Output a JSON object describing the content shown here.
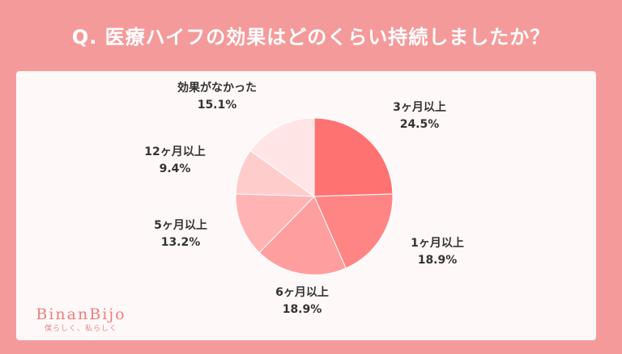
{
  "title": "Q. 医療ハイフの効果はどのくらい持続しましたか？",
  "logo": {
    "name": "BinanBijo",
    "tagline": "僕らしく、私らしく"
  },
  "chart_data": {
    "type": "pie",
    "title": "Q. 医療ハイフの効果はどのくらい持続しましたか？",
    "unit": "%",
    "slices": [
      {
        "label": "3ヶ月以上",
        "value": 24.5,
        "value_label": "24.5%",
        "color": "#ff7272"
      },
      {
        "label": "1ヶ月以上",
        "value": 18.9,
        "value_label": "18.9%",
        "color": "#ff8585"
      },
      {
        "label": "6ヶ月以上",
        "value": 18.9,
        "value_label": "18.9%",
        "color": "#ff9e9e"
      },
      {
        "label": "5ヶ月以上",
        "value": 13.2,
        "value_label": "13.2%",
        "color": "#ffb3b3"
      },
      {
        "label": "12ヶ月以上",
        "value": 9.4,
        "value_label": "9.4%",
        "color": "#ffcccc"
      },
      {
        "label": "効果がなかった",
        "value": 15.1,
        "value_label": "15.1%",
        "color": "#ffe5e5"
      }
    ]
  }
}
